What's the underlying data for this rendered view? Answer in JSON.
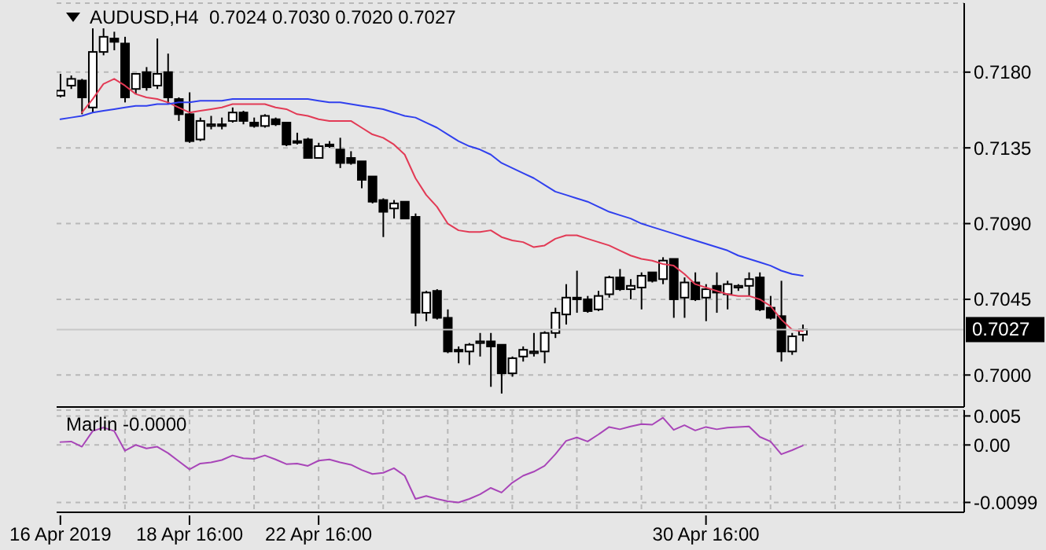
{
  "chart_data": [
    {
      "type": "candlestick",
      "title": "AUDUSD,H4  0.7024 0.7030 0.7020 0.7027",
      "categories": [
        null,
        null,
        null,
        null,
        null,
        null,
        null,
        null,
        null,
        null,
        null,
        null,
        null,
        null,
        null,
        null,
        null,
        null,
        null,
        null,
        null,
        null,
        null,
        null,
        null,
        null,
        null,
        null,
        null,
        null,
        null,
        null,
        null,
        null,
        null,
        null,
        null,
        null,
        null,
        null,
        null,
        null,
        null,
        null,
        null,
        null,
        null,
        null,
        null,
        null,
        null,
        null,
        null,
        null,
        null,
        null,
        null,
        null,
        null,
        null,
        null,
        null,
        null,
        null,
        null,
        null,
        null,
        null,
        null,
        null
      ],
      "ohlc": [
        [
          0.7166,
          0.7179,
          0.7165,
          0.7169
        ],
        [
          0.7172,
          0.7178,
          0.717,
          0.7176
        ],
        [
          0.7175,
          0.7176,
          0.7155,
          0.7165
        ],
        [
          0.7159,
          0.7206,
          0.7156,
          0.7192
        ],
        [
          0.7192,
          0.7206,
          0.719,
          0.7201
        ],
        [
          0.72,
          0.7204,
          0.7193,
          0.7198
        ],
        [
          0.7197,
          0.7201,
          0.7162,
          0.7165
        ],
        [
          0.717,
          0.7179,
          0.7167,
          0.7179
        ],
        [
          0.718,
          0.7183,
          0.7169,
          0.7171
        ],
        [
          0.7172,
          0.72,
          0.717,
          0.7179
        ],
        [
          0.718,
          0.7191,
          0.7161,
          0.7165
        ],
        [
          0.7164,
          0.7165,
          0.7151,
          0.7155
        ],
        [
          0.7155,
          0.7168,
          0.7138,
          0.7139
        ],
        [
          0.714,
          0.7153,
          0.7139,
          0.7151
        ],
        [
          0.7148,
          0.7154,
          0.7146,
          0.7149
        ],
        [
          0.7149,
          0.7153,
          0.7146,
          0.7148
        ],
        [
          0.7151,
          0.7159,
          0.715,
          0.7156
        ],
        [
          0.7156,
          0.7157,
          0.7149,
          0.7151
        ],
        [
          0.715,
          0.7153,
          0.7147,
          0.7148
        ],
        [
          0.7148,
          0.7155,
          0.7147,
          0.7154
        ],
        [
          0.7152,
          0.7153,
          0.7148,
          0.7149
        ],
        [
          0.715,
          0.715,
          0.7136,
          0.7137
        ],
        [
          0.7139,
          0.7144,
          0.7137,
          0.7138
        ],
        [
          0.714,
          0.7141,
          0.7129,
          0.7129
        ],
        [
          0.7129,
          0.7138,
          0.7129,
          0.7136
        ],
        [
          0.7137,
          0.7139,
          0.7135,
          0.7136
        ],
        [
          0.7134,
          0.7141,
          0.7123,
          0.7126
        ],
        [
          0.7129,
          0.7133,
          0.7125,
          0.7126
        ],
        [
          0.7127,
          0.7127,
          0.7111,
          0.7116
        ],
        [
          0.7118,
          0.7118,
          0.7102,
          0.7103
        ],
        [
          0.7104,
          0.7105,
          0.7082,
          0.7097
        ],
        [
          0.7099,
          0.7104,
          0.7093,
          0.7102
        ],
        [
          0.7103,
          0.7103,
          0.7093,
          0.7093
        ],
        [
          0.7094,
          0.7096,
          0.7029,
          0.7037
        ],
        [
          0.7037,
          0.705,
          0.7032,
          0.7049
        ],
        [
          0.705,
          0.7051,
          0.7033,
          0.7034
        ],
        [
          0.7034,
          0.7039,
          0.7013,
          0.7014
        ],
        [
          0.7015,
          0.7017,
          0.7007,
          0.7014
        ],
        [
          0.7014,
          0.7019,
          0.7006,
          0.7018
        ],
        [
          0.7019,
          0.7025,
          0.7011,
          0.702
        ],
        [
          0.702,
          0.7025,
          0.6993,
          0.7017
        ],
        [
          0.7018,
          0.7018,
          0.6989,
          0.7001
        ],
        [
          0.7001,
          0.7011,
          0.6999,
          0.701
        ],
        [
          0.7011,
          0.7017,
          0.7008,
          0.7015
        ],
        [
          0.7013,
          0.7025,
          0.7011,
          0.7014
        ],
        [
          0.7014,
          0.7026,
          0.7007,
          0.7025
        ],
        [
          0.7025,
          0.704,
          0.7022,
          0.7037
        ],
        [
          0.7036,
          0.7054,
          0.703,
          0.7046
        ],
        [
          0.7046,
          0.7062,
          0.7037,
          0.7045
        ],
        [
          0.7045,
          0.7047,
          0.7037,
          0.7038
        ],
        [
          0.7039,
          0.705,
          0.7038,
          0.7047
        ],
        [
          0.7048,
          0.7059,
          0.7046,
          0.7058
        ],
        [
          0.7058,
          0.7063,
          0.705,
          0.7051
        ],
        [
          0.7051,
          0.7057,
          0.7045,
          0.7053
        ],
        [
          0.7052,
          0.7061,
          0.7039,
          0.7059
        ],
        [
          0.7061,
          0.7061,
          0.7055,
          0.7056
        ],
        [
          0.7057,
          0.707,
          0.7054,
          0.7068
        ],
        [
          0.7069,
          0.7069,
          0.7034,
          0.7045
        ],
        [
          0.7046,
          0.7058,
          0.7034,
          0.7055
        ],
        [
          0.7055,
          0.7061,
          0.7044,
          0.7045
        ],
        [
          0.7046,
          0.7054,
          0.7032,
          0.7051
        ],
        [
          0.7053,
          0.7061,
          0.7037,
          0.7049
        ],
        [
          0.7048,
          0.7056,
          0.7039,
          0.7054
        ],
        [
          0.7052,
          0.7054,
          0.705,
          0.7053
        ],
        [
          0.7053,
          0.7061,
          0.7047,
          0.7057
        ],
        [
          0.7058,
          0.7061,
          0.7038,
          0.7039
        ],
        [
          0.704,
          0.7047,
          0.7033,
          0.7034
        ],
        [
          0.7035,
          0.7056,
          0.7008,
          0.7014
        ],
        [
          0.7014,
          0.7025,
          0.7012,
          0.7023
        ],
        [
          0.7024,
          0.703,
          0.702,
          0.7027
        ]
      ],
      "series": [
        {
          "type": "line",
          "color": "#e23a55",
          "values": [
            null,
            null,
            0.7156,
            0.7164,
            0.7173,
            0.7176,
            0.7172,
            0.7167,
            0.7165,
            0.7164,
            0.7162,
            0.7159,
            0.7156,
            0.7157,
            0.7158,
            0.7159,
            0.7161,
            0.7161,
            0.7161,
            0.7161,
            0.7159,
            0.7158,
            0.7155,
            0.7154,
            0.7152,
            0.7151,
            0.7151,
            0.7151,
            0.7147,
            0.7143,
            0.7141,
            0.7137,
            0.7131,
            0.7117,
            0.7107,
            0.71,
            0.709,
            0.7086,
            0.7085,
            0.7085,
            0.7086,
            0.7082,
            0.708,
            0.7079,
            0.7076,
            0.7077,
            0.7081,
            0.7083,
            0.7083,
            0.7081,
            0.7079,
            0.7077,
            0.7074,
            0.7071,
            0.7069,
            0.7068,
            0.7066,
            0.7065,
            0.706,
            0.7054,
            0.7052,
            0.705,
            0.7048,
            0.7047,
            0.7047,
            0.7045,
            0.7041,
            0.7033,
            0.7027,
            0.7026
          ]
        },
        {
          "type": "line",
          "color": "#3040ee",
          "values": [
            0.7152,
            0.7153,
            0.7154,
            0.7156,
            0.7157,
            0.7158,
            0.7159,
            0.716,
            0.716,
            0.7161,
            0.7161,
            0.7162,
            0.7162,
            0.7163,
            0.7163,
            0.7163,
            0.7164,
            0.7164,
            0.7164,
            0.7164,
            0.7164,
            0.7164,
            0.7164,
            0.7164,
            0.7163,
            0.7162,
            0.7162,
            0.7161,
            0.716,
            0.7159,
            0.7158,
            0.7156,
            0.7154,
            0.7153,
            0.715,
            0.7147,
            0.7143,
            0.7139,
            0.7136,
            0.7134,
            0.7131,
            0.7126,
            0.7123,
            0.712,
            0.7117,
            0.7113,
            0.7109,
            0.7107,
            0.7105,
            0.7103,
            0.71,
            0.7097,
            0.7095,
            0.7093,
            0.709,
            0.7088,
            0.7086,
            0.7084,
            0.7082,
            0.708,
            0.7078,
            0.7076,
            0.7074,
            0.7071,
            0.7069,
            0.7067,
            0.7065,
            0.7062,
            0.706,
            0.7059
          ]
        }
      ],
      "ylim": [
        0.6981,
        0.7221
      ],
      "yticks": [
        {
          "value": 0.7,
          "label": "0.7000"
        },
        {
          "value": 0.7045,
          "label": "0.7045"
        },
        {
          "value": 0.709,
          "label": "0.7090"
        },
        {
          "value": 0.7135,
          "label": "0.7135"
        },
        {
          "value": 0.718,
          "label": "0.7180"
        }
      ],
      "ref_lines": [
        {
          "axis": "y",
          "value": 0.7027,
          "label": "0.7027",
          "color": "#c8c8c8"
        }
      ],
      "grid": true,
      "tick_labels": "y"
    },
    {
      "type": "line",
      "title": "Marlin -0.0000",
      "categories": [
        "16 Apr 2019",
        null,
        null,
        null,
        null,
        null,
        null,
        null,
        null,
        null,
        null,
        null,
        "18 Apr 16:00",
        null,
        null,
        null,
        null,
        null,
        null,
        null,
        null,
        null,
        null,
        null,
        "22 Apr 16:00",
        null,
        null,
        null,
        null,
        null,
        null,
        null,
        null,
        null,
        null,
        null,
        null,
        null,
        null,
        null,
        null,
        null,
        null,
        null,
        null,
        null,
        null,
        null,
        null,
        null,
        null,
        null,
        null,
        null,
        null,
        null,
        null,
        null,
        null,
        null,
        "30 Apr 16:00",
        null,
        null,
        null,
        null,
        null,
        null,
        null,
        null,
        null
      ],
      "series": [
        {
          "color": "#a845b8",
          "values": [
            0.0005,
            0.0006,
            -0.0003,
            0.0024,
            0.003,
            0.0024,
            -0.001,
            0.0,
            -0.0006,
            -0.0003,
            -0.0014,
            -0.0028,
            -0.0042,
            -0.0032,
            -0.003,
            -0.0026,
            -0.0018,
            -0.0023,
            -0.0024,
            -0.0018,
            -0.0025,
            -0.0033,
            -0.0032,
            -0.0036,
            -0.0027,
            -0.0025,
            -0.003,
            -0.0034,
            -0.0043,
            -0.005,
            -0.0048,
            -0.004,
            -0.0053,
            -0.0093,
            -0.0088,
            -0.0093,
            -0.0097,
            -0.0099,
            -0.0093,
            -0.0085,
            -0.0074,
            -0.0082,
            -0.0065,
            -0.0053,
            -0.0046,
            -0.0036,
            -0.0016,
            0.0007,
            0.0013,
            0.0006,
            0.0018,
            0.0031,
            0.0027,
            0.0032,
            0.0036,
            0.0035,
            0.0047,
            0.0026,
            0.0034,
            0.0025,
            0.0031,
            0.0027,
            0.003,
            0.0031,
            0.0032,
            0.0014,
            0.0006,
            -0.0016,
            -0.0009,
            -0.0001
          ]
        }
      ],
      "ylim": [
        -0.0116,
        0.006
      ],
      "yticks": [
        {
          "value": -0.0099,
          "label": "-0.0099"
        },
        {
          "value": 0,
          "label": "0.00"
        },
        {
          "value": 0.005,
          "label": "0.005"
        }
      ],
      "grid": true
    }
  ]
}
